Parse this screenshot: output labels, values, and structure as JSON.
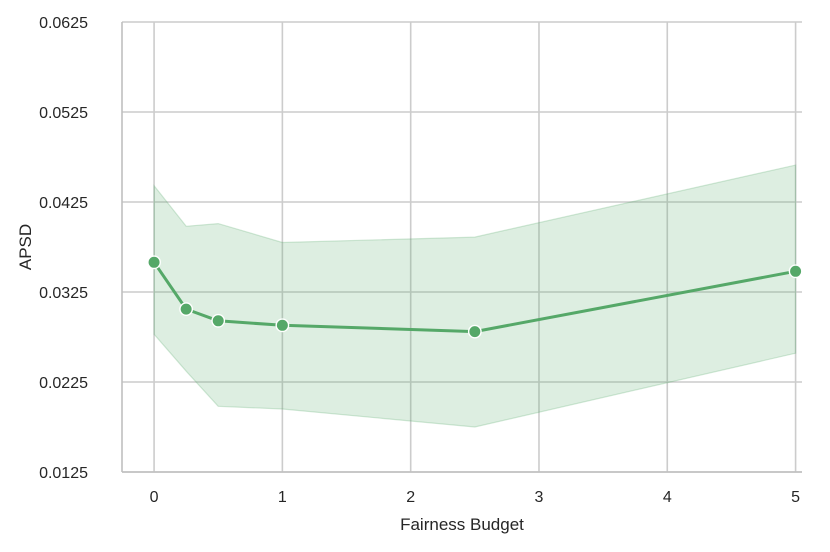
{
  "chart_data": {
    "type": "line",
    "title": "",
    "xlabel": "Fairness Budget",
    "ylabel": "APSD",
    "xlim": [
      -0.25,
      5.05
    ],
    "ylim": [
      0.0125,
      0.0625
    ],
    "xticks": [
      0,
      1,
      2,
      3,
      4,
      5
    ],
    "xtick_labels": [
      "0",
      "1",
      "2",
      "3",
      "4",
      "5"
    ],
    "yticks": [
      0.0125,
      0.0225,
      0.0325,
      0.0425,
      0.0525,
      0.0625
    ],
    "ytick_labels": [
      "0.0125",
      "0.0225",
      "0.0325",
      "0.0425",
      "0.0525",
      "0.0625"
    ],
    "grid": true,
    "series": [
      {
        "color": "#55a868",
        "x": [
          0,
          0.25,
          0.5,
          1,
          2.5,
          5
        ],
        "y": [
          0.0358,
          0.0306,
          0.0293,
          0.0288,
          0.0281,
          0.0348
        ],
        "ci_upper": [
          0.0443,
          0.0398,
          0.0401,
          0.038,
          0.0386,
          0.0466
        ],
        "ci_lower": [
          0.0278,
          0.0237,
          0.0198,
          0.0195,
          0.0175,
          0.0257
        ]
      }
    ]
  }
}
